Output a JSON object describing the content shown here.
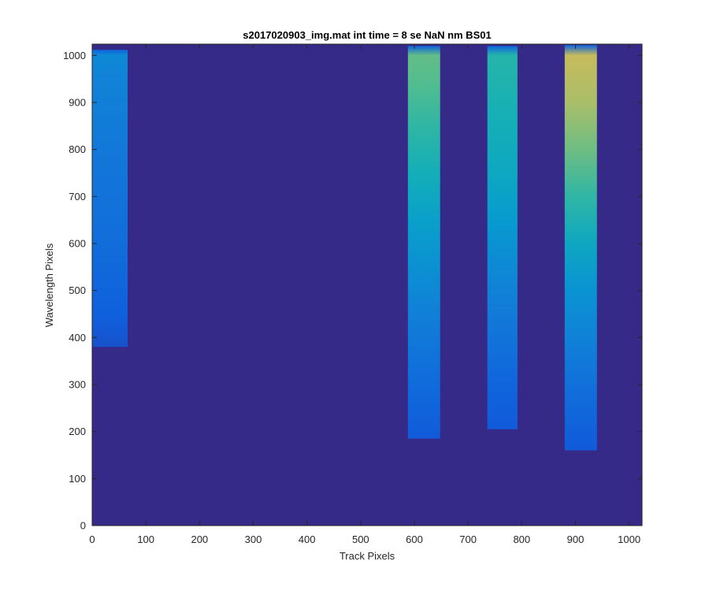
{
  "chart_data": {
    "type": "heatmap",
    "title": "s2017020903_img.mat int time = 8 se  NaN nm BS01",
    "xlabel": "Track Pixels",
    "ylabel": "Wavelength Pixels",
    "xlim": [
      0,
      1024
    ],
    "ylim": [
      0,
      1024
    ],
    "xticks": [
      0,
      100,
      200,
      300,
      400,
      500,
      600,
      700,
      800,
      900,
      1000
    ],
    "yticks": [
      0,
      100,
      200,
      300,
      400,
      500,
      600,
      700,
      800,
      900,
      1000
    ],
    "colormap": "parula",
    "background_color": "#352A87",
    "grid": false,
    "legend": "none",
    "bands": [
      {
        "x_range": [
          0,
          66
        ],
        "y_bottom": 380,
        "y_top": 1012,
        "profile": [
          {
            "y": 380,
            "level": 0.1
          },
          {
            "y": 450,
            "level": 0.14
          },
          {
            "y": 600,
            "level": 0.19
          },
          {
            "y": 800,
            "level": 0.23
          },
          {
            "y": 950,
            "level": 0.27
          },
          {
            "y": 1000,
            "level": 0.3
          }
        ]
      },
      {
        "x_range": [
          588,
          648
        ],
        "y_bottom": 185,
        "y_top": 1020,
        "profile": [
          {
            "y": 185,
            "level": 0.12
          },
          {
            "y": 300,
            "level": 0.18
          },
          {
            "y": 450,
            "level": 0.26
          },
          {
            "y": 550,
            "level": 0.33
          },
          {
            "y": 650,
            "level": 0.4
          },
          {
            "y": 750,
            "level": 0.48
          },
          {
            "y": 850,
            "level": 0.55
          },
          {
            "y": 950,
            "level": 0.62
          },
          {
            "y": 1000,
            "level": 0.64
          }
        ]
      },
      {
        "x_range": [
          736,
          792
        ],
        "y_bottom": 205,
        "y_top": 1020,
        "profile": [
          {
            "y": 205,
            "level": 0.12
          },
          {
            "y": 300,
            "level": 0.16
          },
          {
            "y": 450,
            "level": 0.24
          },
          {
            "y": 550,
            "level": 0.3
          },
          {
            "y": 650,
            "level": 0.37
          },
          {
            "y": 750,
            "level": 0.44
          },
          {
            "y": 850,
            "level": 0.48
          },
          {
            "y": 950,
            "level": 0.52
          },
          {
            "y": 1000,
            "level": 0.53
          }
        ]
      },
      {
        "x_range": [
          880,
          940
        ],
        "y_bottom": 160,
        "y_top": 1022,
        "profile": [
          {
            "y": 160,
            "level": 0.12
          },
          {
            "y": 300,
            "level": 0.2
          },
          {
            "y": 400,
            "level": 0.27
          },
          {
            "y": 500,
            "level": 0.34
          },
          {
            "y": 600,
            "level": 0.44
          },
          {
            "y": 700,
            "level": 0.55
          },
          {
            "y": 800,
            "level": 0.66
          },
          {
            "y": 900,
            "level": 0.76
          },
          {
            "y": 1000,
            "level": 0.82
          }
        ]
      }
    ]
  }
}
